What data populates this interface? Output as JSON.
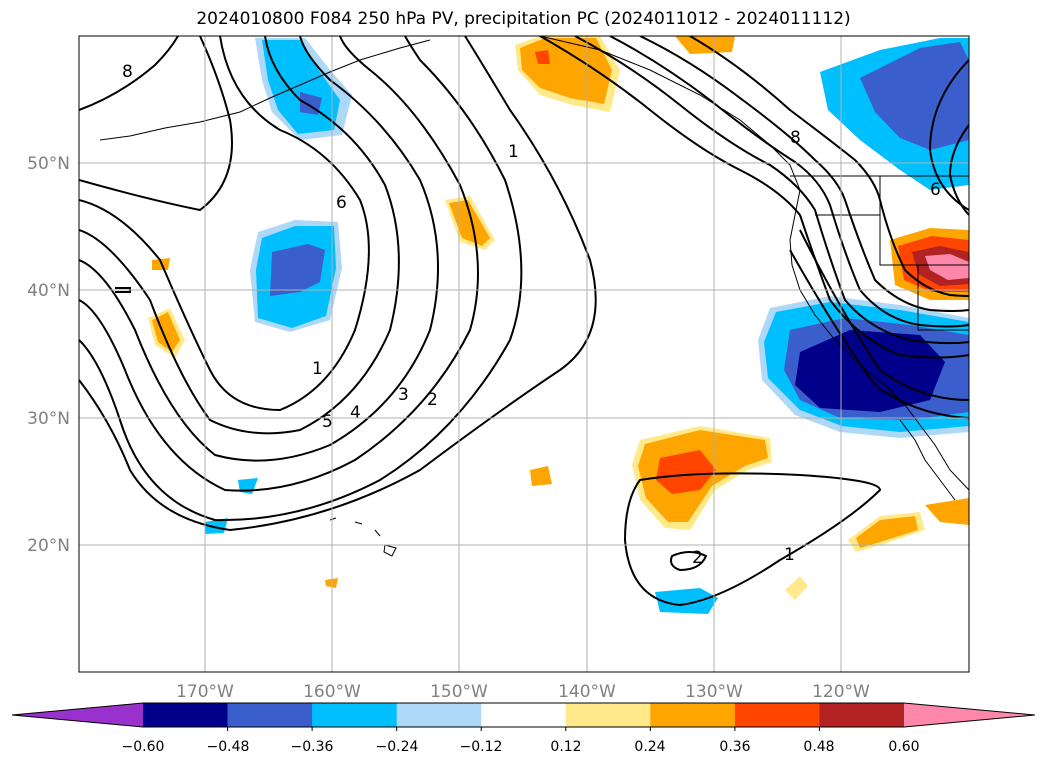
{
  "title": "2024010800 F084 250 hPa PV, precipitation PC (2024011012 - 2024011112)",
  "map": {
    "lon_labels": [
      "170°W",
      "160°W",
      "150°W",
      "140°W",
      "130°W",
      "120°W"
    ],
    "lon_values": [
      -170,
      -160,
      -150,
      -140,
      -130,
      -120
    ],
    "lat_labels": [
      "50°N",
      "40°N",
      "30°N",
      "20°N"
    ],
    "lat_values": [
      50,
      40,
      30,
      20
    ],
    "lon_range": [
      -180,
      -110
    ],
    "lat_range": [
      10,
      60
    ],
    "grid": true,
    "contour_field": "250 hPa PV",
    "contour_labels": [
      "8",
      "6",
      "1",
      "5",
      "4",
      "3",
      "2",
      "1",
      "2",
      "1",
      "8",
      "6"
    ],
    "colors": {
      "neg_060": "#9932cc",
      "neg_048": "#00008b",
      "neg_036": "#3a5fcd",
      "neg_024": "#00bfff",
      "neg_012": "#add8f7",
      "zero": "#ffffff",
      "pos_012": "#ffe98a",
      "pos_024": "#ffa500",
      "pos_036": "#ff4500",
      "pos_048": "#b22222",
      "pos_060": "#ff88aa"
    }
  },
  "colorbar": {
    "tick_labels": [
      "−0.60",
      "−0.48",
      "−0.36",
      "−0.24",
      "−0.12",
      "0.12",
      "0.24",
      "0.36",
      "0.48",
      "0.60"
    ],
    "segments": [
      "#9932cc",
      "#00008b",
      "#3a5fcd",
      "#00bfff",
      "#add8f7",
      "#ffffff",
      "#ffe98a",
      "#ffa500",
      "#ff4500",
      "#b22222",
      "#ff88aa"
    ]
  }
}
